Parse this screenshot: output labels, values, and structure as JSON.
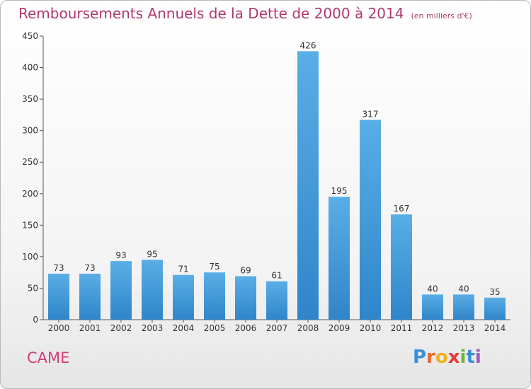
{
  "title": "Remboursements Annuels de la Dette de 2000 à 2014",
  "unit": "(en milliers d'€)",
  "commune": "CAME",
  "logo": {
    "letters": [
      "P",
      "r",
      "o",
      "x",
      "i",
      "t",
      "i"
    ],
    "colors": [
      "#3a8fd6",
      "#e8662b",
      "#f2b21c",
      "#e23b3b",
      "#6fb63a",
      "#3a8fd6",
      "#9b59b6"
    ]
  },
  "colors": {
    "bar": "#3b93d8",
    "title": "#b0386f",
    "commune": "#d2407a"
  },
  "chart_data": {
    "type": "bar",
    "title": "Remboursements Annuels de la Dette de 2000 à 2014",
    "categories": [
      "2000",
      "2001",
      "2002",
      "2003",
      "2004",
      "2005",
      "2006",
      "2007",
      "2008",
      "2009",
      "2010",
      "2011",
      "2012",
      "2013",
      "2014"
    ],
    "values": [
      73,
      73,
      93,
      95,
      71,
      75,
      69,
      61,
      426,
      195,
      317,
      167,
      40,
      40,
      35
    ],
    "ylim": [
      0,
      450
    ],
    "yticks": [
      0,
      50,
      100,
      150,
      200,
      250,
      300,
      350,
      400,
      450
    ],
    "grid": false,
    "legend": "none"
  }
}
